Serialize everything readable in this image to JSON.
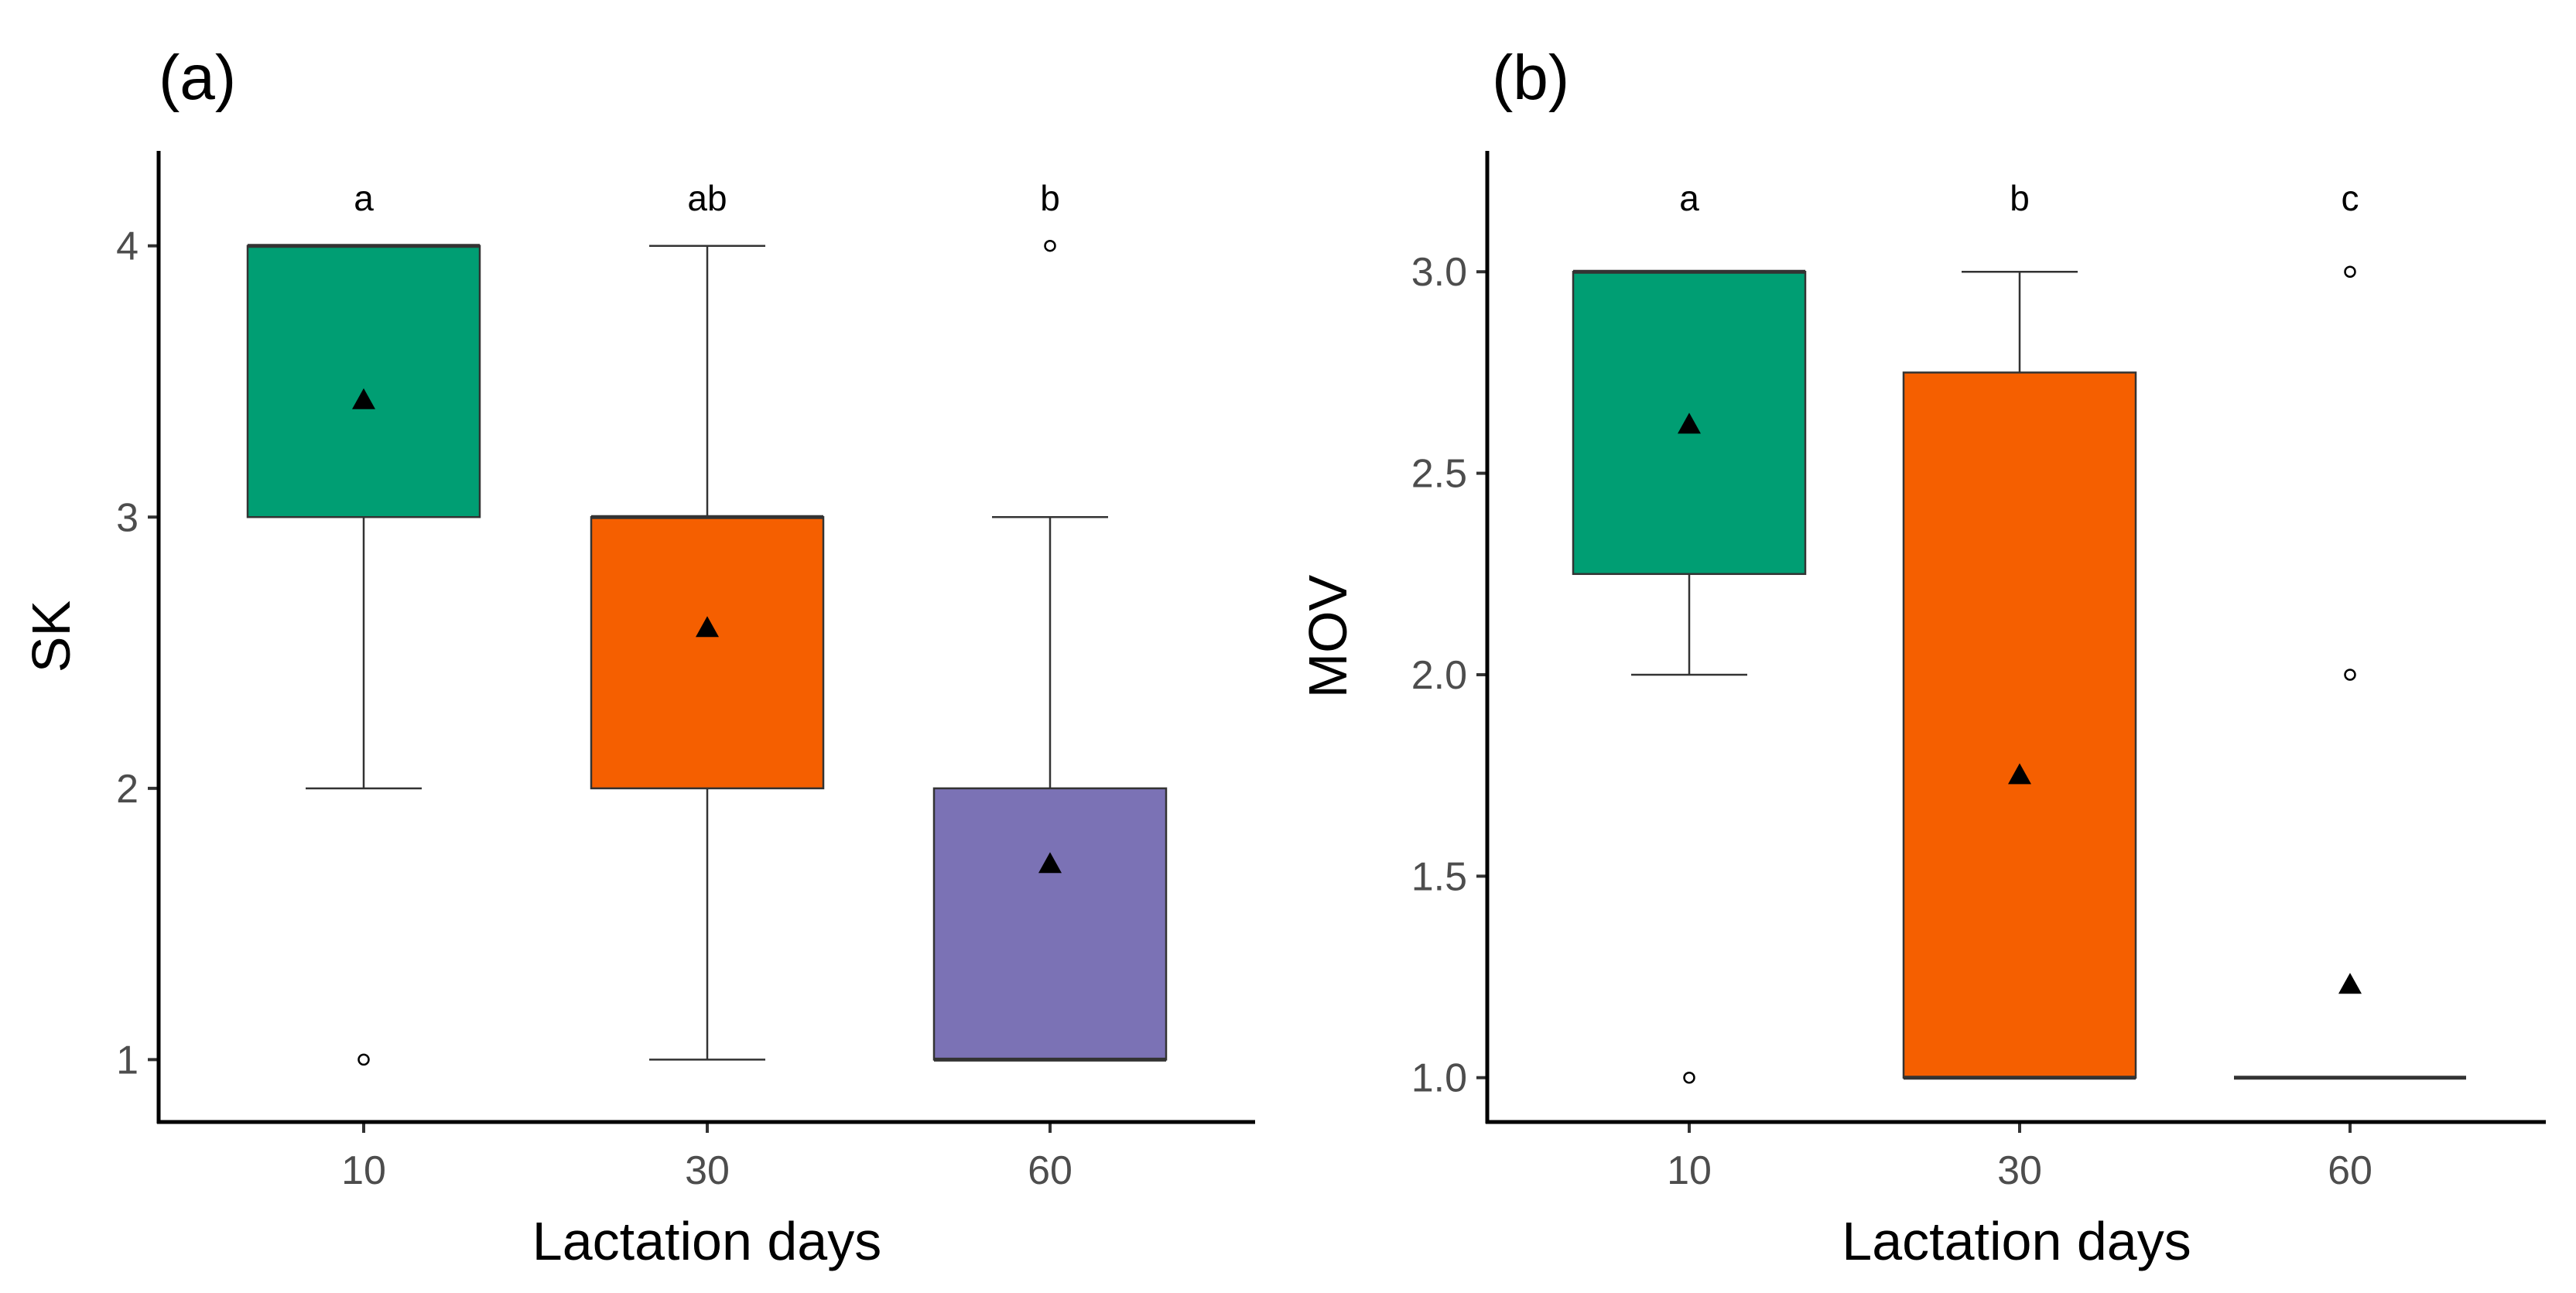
{
  "chart_data": [
    {
      "type": "box",
      "panel_label": "(a)",
      "xlabel": "Lactation days",
      "ylabel": "SK",
      "categories": [
        "10",
        "30",
        "60"
      ],
      "ylim": [
        0.77,
        4.35
      ],
      "yticks": [
        1,
        2,
        3,
        4
      ],
      "ytick_labels": [
        "1",
        "2",
        "3",
        "4"
      ],
      "groups": [
        {
          "category": "10",
          "color": "#009E73",
          "q1": 3,
          "median": 4,
          "q3": 4,
          "whisker_low": 2,
          "whisker_high": 4,
          "mean": 3.43,
          "outliers": [
            1
          ],
          "letter": "a"
        },
        {
          "category": "30",
          "color": "#F55F00",
          "q1": 2,
          "median": 3,
          "q3": 3,
          "whisker_low": 1,
          "whisker_high": 4,
          "mean": 2.59,
          "outliers": [],
          "letter": "ab"
        },
        {
          "category": "60",
          "color": "#7B72B5",
          "q1": 1,
          "median": 1,
          "q3": 2,
          "whisker_low": 1,
          "whisker_high": 3,
          "mean": 1.72,
          "outliers": [
            4
          ],
          "letter": "b"
        }
      ]
    },
    {
      "type": "box",
      "panel_label": "(b)",
      "xlabel": "Lactation days",
      "ylabel": "MOV",
      "categories": [
        "10",
        "30",
        "60"
      ],
      "ylim": [
        0.89,
        3.3
      ],
      "yticks": [
        1.0,
        1.5,
        2.0,
        2.5,
        3.0
      ],
      "ytick_labels": [
        "1.0",
        "1.5",
        "2.0",
        "2.5",
        "3.0"
      ],
      "groups": [
        {
          "category": "10",
          "color": "#009E73",
          "q1": 2.25,
          "median": 3,
          "q3": 3,
          "whisker_low": 2,
          "whisker_high": 3,
          "mean": 2.62,
          "outliers": [
            1
          ],
          "letter": "a"
        },
        {
          "category": "30",
          "color": "#F55F00",
          "q1": 1,
          "median": 1,
          "q3": 2.75,
          "whisker_low": 1,
          "whisker_high": 3,
          "mean": 1.75,
          "outliers": [],
          "letter": "b"
        },
        {
          "category": "60",
          "color": "#F55F00",
          "q1": 1,
          "median": 1,
          "q3": 1,
          "whisker_low": 1,
          "whisker_high": 1,
          "mean": 1.23,
          "outliers": [
            2,
            3
          ],
          "letter": "c"
        }
      ]
    }
  ]
}
